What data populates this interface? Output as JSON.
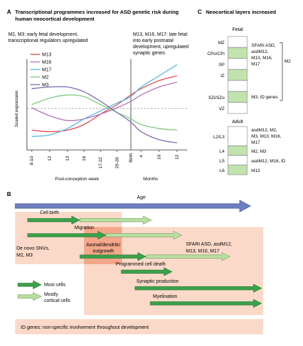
{
  "panel_a": {
    "letter": "A",
    "title_line1": "Transcriptional programmes increased for ASD genetic risk during",
    "title_line2": "human neocortical development",
    "note_left_line1": "M2, M3: early fetal development,",
    "note_left_line2": "transcriptional regulators upregulated",
    "note_right_line1": "M13, M16, M17: late fetal",
    "note_right_line2": "into early postnatal",
    "note_right_line3": "development, upregulated",
    "note_right_line4": "synaptic genes",
    "ylabel": "Scaled expression",
    "xlabel_left": "Post-conception week",
    "xlabel_right": "Months",
    "ticks_left": [
      "8-10",
      "12",
      "13",
      "16",
      "17-22",
      "25-26"
    ],
    "tick_birth": "Birth",
    "ticks_right": [
      "4",
      "10",
      "12"
    ]
  },
  "chart_data": {
    "type": "line",
    "xlabel": "Post-conception week / Months",
    "ylabel": "Scaled expression",
    "x": [
      "8-10",
      "12",
      "13",
      "16",
      "17-22",
      "25-26",
      "Birth",
      "4",
      "10",
      "12"
    ],
    "series": [
      {
        "name": "M13",
        "color": "#e8444b",
        "values": [
          0.18,
          0.16,
          0.18,
          0.25,
          0.38,
          0.5,
          0.62,
          0.7,
          0.8,
          0.86
        ]
      },
      {
        "name": "M16",
        "color": "#b56fb5",
        "values": [
          0.46,
          0.36,
          0.3,
          0.32,
          0.38,
          0.46,
          0.54,
          0.62,
          0.72,
          0.78
        ]
      },
      {
        "name": "M17",
        "color": "#4fb7e3",
        "values": [
          0.1,
          0.12,
          0.2,
          0.32,
          0.42,
          0.52,
          0.6,
          0.72,
          0.86,
          1.0
        ]
      },
      {
        "name": "M2",
        "color": "#7cc97b",
        "values": [
          0.5,
          0.58,
          0.62,
          0.6,
          0.5,
          0.4,
          0.32,
          0.25,
          0.2,
          0.18
        ]
      },
      {
        "name": "M3",
        "color": "#7b68b5",
        "values": [
          0.7,
          0.72,
          0.72,
          0.66,
          0.54,
          0.4,
          0.28,
          0.16,
          0.06,
          0.02
        ]
      }
    ],
    "reference_line": 0.45
  },
  "panel_c": {
    "letter": "C",
    "title": "Neocortical layers increased",
    "fetal_label": "Fetal",
    "adult_label": "Adult",
    "fetal_layers": [
      "MZ",
      "CPo/CPi",
      "SP",
      "IZ",
      "SZi/SZo",
      "VZ"
    ],
    "fetal_notes": [
      {
        "lines": [
          "SFARI ASD,",
          "asdM12,",
          "M13, M16,",
          "M17"
        ]
      },
      {
        "lines": [
          "M3, ID genes"
        ]
      }
    ],
    "fetal_bracket_label": "M2",
    "adult_layers": [
      "L2/L3",
      "L4",
      "L5",
      "L6"
    ],
    "adult_notes": [
      {
        "lines": [
          "asdM12, M2,",
          "M3, M13, M16,",
          "M17"
        ]
      },
      {
        "lines": [
          "M2, M3"
        ]
      },
      {
        "lines": [
          "asdM12, M16, ID"
        ]
      },
      {
        "lines": [
          "M13"
        ]
      }
    ]
  },
  "panel_b": {
    "letter": "B",
    "age_label": "Age",
    "cell_birth": "Cell birth",
    "migration": "Migration",
    "de_novo_line1": "De novo SNVs,",
    "de_novo_line2": "M2, M3",
    "axonal_line1": "Axonal/dendritic",
    "axonal_line2": "outgrowth",
    "sfari_line1": "SFARI ASD, asdM12,",
    "sfari_line2": "M13, M16, M17",
    "pcd": "Programmed cell death",
    "synaptic": "Synaptic production",
    "myelination": "Myelination",
    "legend_most": "Most cells",
    "legend_mostly_line1": "Mostly",
    "legend_mostly_line2": "cortical cells",
    "id_genes": "ID genes: non-specific involvement throughout development"
  },
  "colors": {
    "green_dark": "#3aa14a",
    "green_light": "#b8dea0",
    "age_arrow": "#6e7fc0",
    "salmon": "#fbd9c8",
    "salmon_dark": "#f4a78a",
    "layer_fill": "#c2e3ae"
  }
}
